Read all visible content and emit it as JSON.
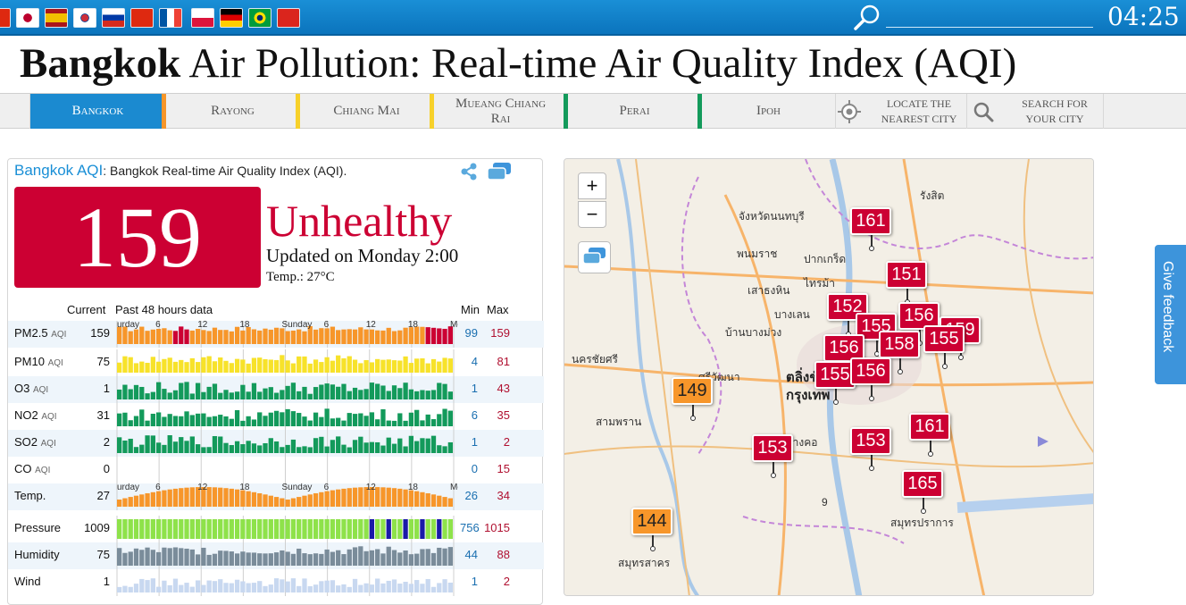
{
  "topbar": {
    "flags": [
      "flag-china",
      "flag-japan",
      "flag-spain",
      "flag-korea",
      "flag-russia",
      "flag-hongkong",
      "flag-france",
      "flag-poland",
      "flag-germany",
      "flag-brazil",
      "flag-vietnam"
    ],
    "time": "04:25",
    "colors": {
      "bar": "#1a8fd6"
    }
  },
  "title": {
    "bold": "Bangkok",
    "rest": " Air Pollution: Real-time Air Quality Index (AQI)"
  },
  "tabs": [
    {
      "label": "Bangkok",
      "active": true,
      "color": "#f7962a"
    },
    {
      "label": "Rayong",
      "active": false,
      "color": "#f7d12a"
    },
    {
      "label": "Chiang Mai",
      "active": false,
      "color": "#f7d12a"
    },
    {
      "label": "Mueang Chiang Rai",
      "active": false,
      "color": "#139a5b"
    },
    {
      "label": "Perai",
      "active": false,
      "color": "#139a5b"
    },
    {
      "label": "Ipoh",
      "active": false,
      "color": ""
    }
  ],
  "tools": {
    "locate": "Locate the nearest city",
    "search": "Search for your city"
  },
  "panel": {
    "city_link": "Bangkok AQI",
    "heading_rest": ": Bangkok Real-time Air Quality Index (AQI).",
    "aqi": "159",
    "status": "Unhealthy",
    "updated": "Updated on Monday 2:00",
    "temperature": "Temp.: 27°C",
    "headers": {
      "current": "Current",
      "past": "Past 48 hours data",
      "min": "Min",
      "max": "Max"
    },
    "axis_ticks": [
      "urday",
      "6",
      "12",
      "18",
      "Sunday",
      "6",
      "12",
      "18",
      "Monday"
    ],
    "rows": [
      {
        "name": "PM2.5",
        "unit": "AQI",
        "current": "159",
        "min": "99",
        "max": "159",
        "color": "#f7962a"
      },
      {
        "name": "PM10",
        "unit": "AQI",
        "current": "75",
        "min": "4",
        "max": "81",
        "color": "#f7e22a"
      },
      {
        "name": "O3",
        "unit": "AQI",
        "current": "1",
        "min": "1",
        "max": "43",
        "color": "#139a5b"
      },
      {
        "name": "NO2",
        "unit": "AQI",
        "current": "31",
        "min": "6",
        "max": "35",
        "color": "#139a5b"
      },
      {
        "name": "SO2",
        "unit": "AQI",
        "current": "2",
        "min": "1",
        "max": "2",
        "color": "#139a5b"
      },
      {
        "name": "CO",
        "unit": "AQI",
        "current": "0",
        "min": "0",
        "max": "15",
        "color": "#139a5b"
      },
      {
        "name": "Temp.",
        "unit": "",
        "current": "27",
        "min": "26",
        "max": "34",
        "color": "#f7962a"
      },
      {
        "name": "Pressure",
        "unit": "",
        "current": "1009",
        "min": "756",
        "max": "1015",
        "color": "#8ee24a"
      },
      {
        "name": "Humidity",
        "unit": "",
        "current": "75",
        "min": "44",
        "max": "88",
        "color": "#7a8c9a"
      },
      {
        "name": "Wind",
        "unit": "",
        "current": "1",
        "min": "1",
        "max": "2",
        "color": "#c8d8f0"
      }
    ]
  },
  "map": {
    "zoom_in": "+",
    "zoom_out": "−",
    "labels": [
      "รังสิต",
      "จังหวัดนนทบุรี",
      "ปากเกร็ด",
      "พนมราช",
      "ไทรม้า",
      "เสาธงหิน",
      "บางเลน",
      "บ้านบางม่วง",
      "นครชัยศรี",
      "ตลิ่งชัน",
      "กรุงเทพ",
      "ศรีวัฒนา",
      "สามพราน",
      "บางคอ",
      "สมุทรปราการ",
      "สมุทรสาคร",
      "9"
    ],
    "markers": [
      {
        "value": "161",
        "level": "red"
      },
      {
        "value": "151",
        "level": "red"
      },
      {
        "value": "152",
        "level": "red"
      },
      {
        "value": "156",
        "level": "red"
      },
      {
        "value": "155",
        "level": "red"
      },
      {
        "value": "159",
        "level": "red"
      },
      {
        "value": "156",
        "level": "red"
      },
      {
        "value": "158",
        "level": "red"
      },
      {
        "value": "155",
        "level": "red"
      },
      {
        "value": "155",
        "level": "red"
      },
      {
        "value": "156",
        "level": "red"
      },
      {
        "value": "149",
        "level": "orange"
      },
      {
        "value": "153",
        "level": "red"
      },
      {
        "value": "153",
        "level": "red"
      },
      {
        "value": "161",
        "level": "red"
      },
      {
        "value": "165",
        "level": "red"
      },
      {
        "value": "144",
        "level": "orange"
      }
    ]
  },
  "feedback": "Give feedback"
}
